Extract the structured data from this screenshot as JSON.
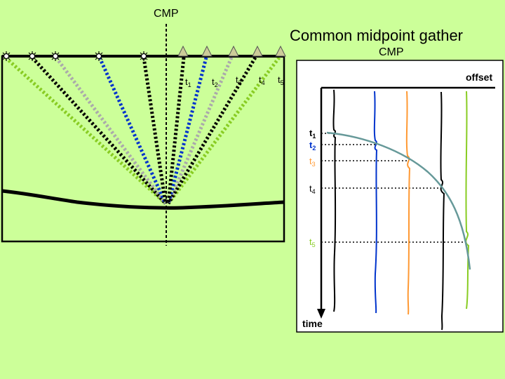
{
  "labels": {
    "cmp_top": "CMP",
    "title": "Common midpoint gather",
    "cmp_right": "CMP",
    "offset": "offset",
    "time": "time"
  },
  "time_labels": [
    {
      "base": "t",
      "sub": "1",
      "color": "#000000"
    },
    {
      "base": "t",
      "sub": "2",
      "color": "#0033cc"
    },
    {
      "base": "t",
      "sub": "3",
      "color": "#ff9933"
    },
    {
      "base": "t",
      "sub": "4",
      "color": "#000000"
    },
    {
      "base": "t",
      "sub": "5",
      "color": "#88cc22"
    }
  ],
  "ray_labels": [
    {
      "base": "t",
      "sub": "1"
    },
    {
      "base": "t",
      "sub": "2"
    },
    {
      "base": "t",
      "sub": "3"
    },
    {
      "base": "t",
      "sub": "4"
    },
    {
      "base": "t",
      "sub": "5"
    }
  ],
  "colors": {
    "background": "#ccff99",
    "ray_black": "#000000",
    "ray_blue": "#0033cc",
    "ray_gray": "#aaaaaa",
    "ray_green": "#88cc22",
    "trace_orange": "#ff9933",
    "hyperbola": "#669999"
  }
}
